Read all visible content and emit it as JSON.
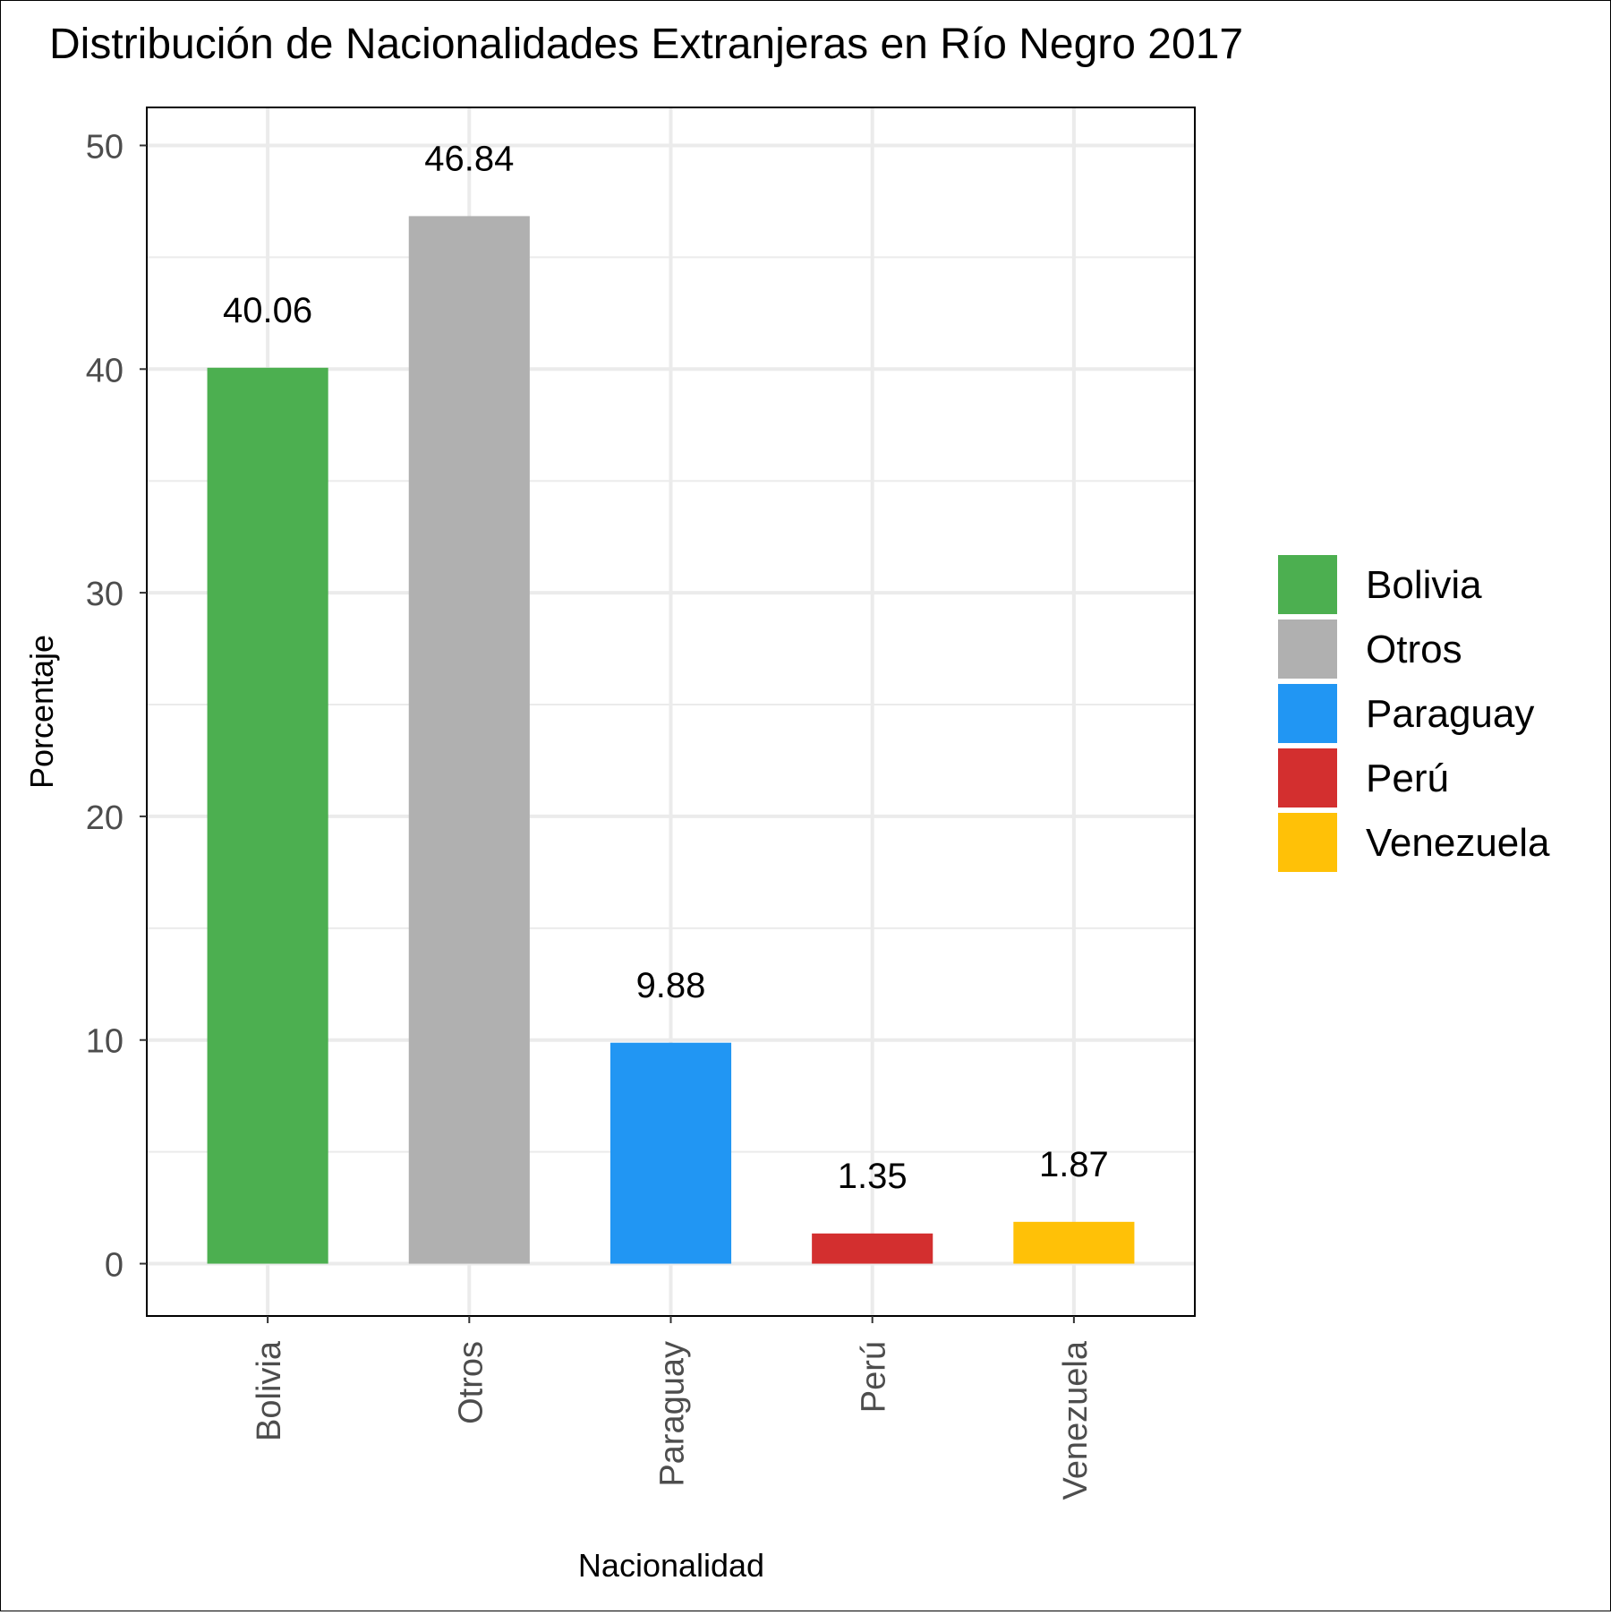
{
  "chart_data": {
    "type": "bar",
    "title": "Distribución de Nacionalidades Extranjeras en Río Negro 2017",
    "xlabel": "Nacionalidad",
    "ylabel": "Porcentaje",
    "categories": [
      "Bolivia",
      "Otros",
      "Paraguay",
      "Perú",
      "Venezuela"
    ],
    "values": [
      40.06,
      46.84,
      9.88,
      1.35,
      1.87
    ],
    "data_labels": [
      "40.06",
      "46.84",
      "9.88",
      "1.35",
      "1.87"
    ],
    "colors": [
      "#4caf50",
      "#b0b0b0",
      "#2196f3",
      "#d32f2f",
      "#ffc107"
    ],
    "ylim": [
      -2.34,
      51.7
    ],
    "yticks": [
      0,
      10,
      20,
      30,
      40,
      50
    ],
    "grid": true,
    "legend": {
      "position": "right",
      "entries": [
        "Bolivia",
        "Otros",
        "Paraguay",
        "Perú",
        "Venezuela"
      ]
    }
  }
}
